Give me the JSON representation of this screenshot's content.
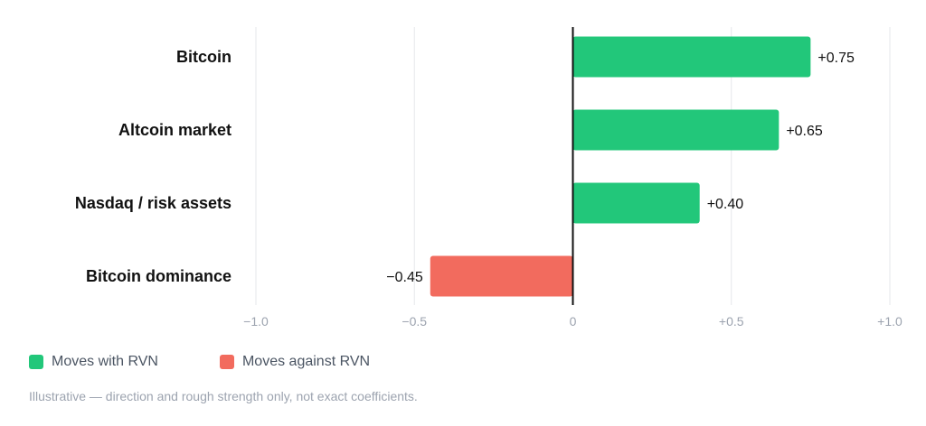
{
  "chart_data": {
    "type": "bar",
    "orientation": "horizontal",
    "categories": [
      "Bitcoin",
      "Altcoin market",
      "Nasdaq / risk assets",
      "Bitcoin dominance"
    ],
    "values": [
      0.75,
      0.65,
      0.4,
      -0.45
    ],
    "value_labels": [
      "+0.75",
      "+0.65",
      "+0.40",
      "−0.45"
    ],
    "xlim": [
      -1.0,
      1.0
    ],
    "x_ticks": [
      -1.0,
      -0.5,
      0,
      0.5,
      1.0
    ],
    "x_tick_labels": [
      "−1.0",
      "−0.5",
      "0",
      "+0.5",
      "+1.0"
    ],
    "grid": true,
    "colors": {
      "positive": "#22c77a",
      "negative": "#f26b5e",
      "zero_line": "#111111",
      "grid": "#e5e7eb"
    }
  },
  "legend": {
    "positive_label": "Moves with RVN",
    "negative_label": "Moves against RVN"
  },
  "footnote": "Illustrative — direction and rough strength only, not exact coefficients."
}
